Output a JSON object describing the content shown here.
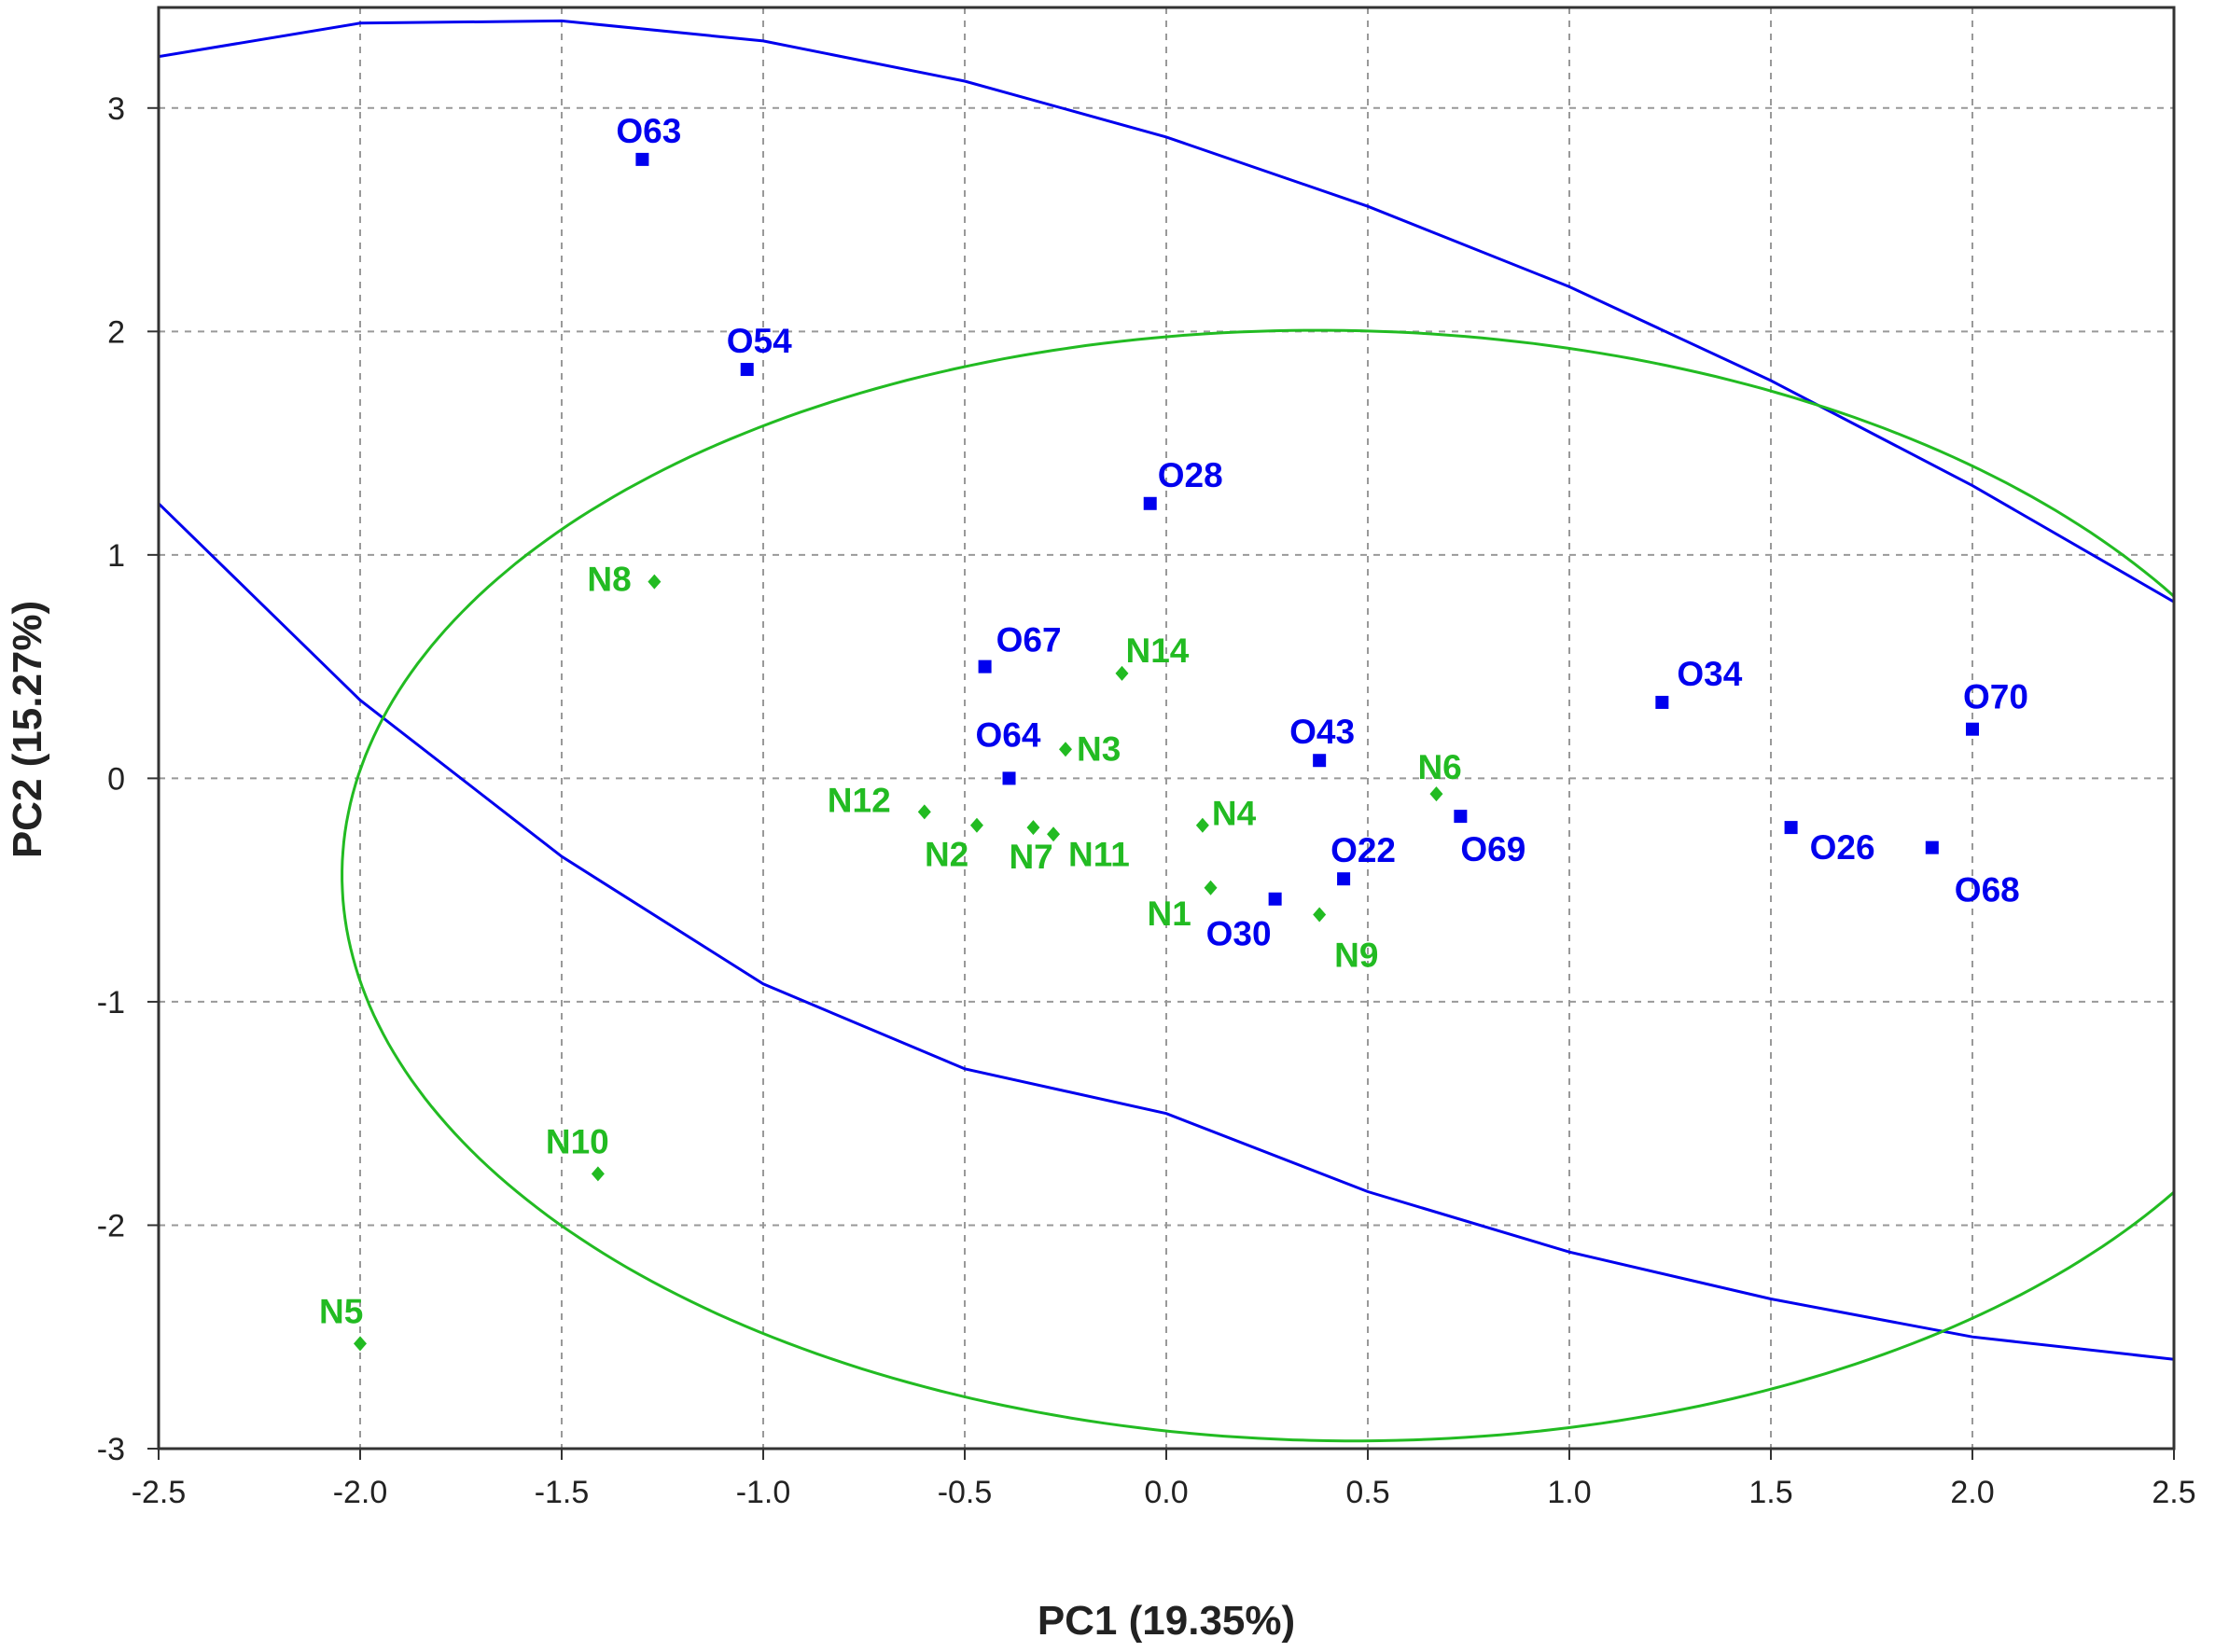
{
  "chart_data": {
    "type": "scatter",
    "title": "",
    "xlabel": "PC1 (19.35%)",
    "ylabel": "PC2 (15.27%)",
    "xlim": [
      -2.5,
      2.5
    ],
    "ylim": [
      -3,
      3.45
    ],
    "x_ticks": [
      -2.5,
      -2.0,
      -1.5,
      -1.0,
      -0.5,
      0.0,
      0.5,
      1.0,
      1.5,
      2.0,
      2.5
    ],
    "x_tick_labels": [
      "-2.5",
      "-2.0",
      "-1.5",
      "-1.0",
      "-0.5",
      "0.0",
      "0.5",
      "1.0",
      "1.5",
      "2.0",
      "2.5"
    ],
    "y_ticks": [
      3,
      2,
      1,
      0,
      -1,
      -2,
      -3
    ],
    "y_tick_labels": [
      "3",
      "2",
      "1",
      "0",
      "-1",
      "-2",
      "-3"
    ],
    "grid": true,
    "series": [
      {
        "color": "#0000ee",
        "marker": "square",
        "points": [
          {
            "label": "O63",
            "x": -1.3,
            "y": 2.77
          },
          {
            "label": "O54",
            "x": -1.04,
            "y": 1.83
          },
          {
            "label": "O28",
            "x": -0.04,
            "y": 1.23
          },
          {
            "label": "O67",
            "x": -0.45,
            "y": 0.5
          },
          {
            "label": "O64",
            "x": -0.39,
            "y": 0.0
          },
          {
            "label": "O43",
            "x": 0.38,
            "y": 0.08
          },
          {
            "label": "O22",
            "x": 0.44,
            "y": -0.45
          },
          {
            "label": "O30",
            "x": 0.27,
            "y": -0.54
          },
          {
            "label": "O69",
            "x": 0.73,
            "y": -0.17
          },
          {
            "label": "O34",
            "x": 1.23,
            "y": 0.34
          },
          {
            "label": "O26",
            "x": 1.55,
            "y": -0.22
          },
          {
            "label": "O68",
            "x": 1.9,
            "y": -0.31
          },
          {
            "label": "O70",
            "x": 2.0,
            "y": 0.22
          }
        ],
        "ellipse": [
          {
            "x": -2.5,
            "y": 3.23
          },
          {
            "x": -2.0,
            "y": 3.38
          },
          {
            "x": -1.5,
            "y": 3.39
          },
          {
            "x": -1.0,
            "y": 3.3
          },
          {
            "x": -0.5,
            "y": 3.12
          },
          {
            "x": 0.0,
            "y": 2.87
          },
          {
            "x": 0.5,
            "y": 2.56
          },
          {
            "x": 1.0,
            "y": 2.2
          },
          {
            "x": 1.5,
            "y": 1.78
          },
          {
            "x": 2.0,
            "y": 1.31
          },
          {
            "x": 2.5,
            "y": 0.79
          }
        ],
        "ellipse_lower": [
          {
            "x": -2.5,
            "y": 1.23
          },
          {
            "x": -2.0,
            "y": 0.35
          },
          {
            "x": -1.5,
            "y": -0.35
          },
          {
            "x": -1.0,
            "y": -0.92
          },
          {
            "x": -0.5,
            "y": -1.3
          },
          {
            "x": 0.0,
            "y": -1.5
          },
          {
            "x": 0.5,
            "y": -1.85
          },
          {
            "x": 1.0,
            "y": -2.12
          },
          {
            "x": 1.5,
            "y": -2.33
          },
          {
            "x": 2.0,
            "y": -2.5
          },
          {
            "x": 2.5,
            "y": -2.6
          }
        ]
      },
      {
        "color": "#22bb22",
        "marker": "diamond",
        "points": [
          {
            "label": "N8",
            "x": -1.27,
            "y": 0.88
          },
          {
            "label": "N14",
            "x": -0.11,
            "y": 0.47
          },
          {
            "label": "N3",
            "x": -0.25,
            "y": 0.13
          },
          {
            "label": "N12",
            "x": -0.6,
            "y": -0.15
          },
          {
            "label": "N2",
            "x": -0.47,
            "y": -0.21
          },
          {
            "label": "N7",
            "x": -0.33,
            "y": -0.22
          },
          {
            "label": "N11",
            "x": -0.28,
            "y": -0.25
          },
          {
            "label": "N4",
            "x": 0.09,
            "y": -0.21
          },
          {
            "label": "N1",
            "x": 0.11,
            "y": -0.49
          },
          {
            "label": "N9",
            "x": 0.38,
            "y": -0.61
          },
          {
            "label": "N6",
            "x": 0.67,
            "y": -0.07
          },
          {
            "label": "N10",
            "x": -1.41,
            "y": -1.77
          },
          {
            "label": "N5",
            "x": -2.0,
            "y": -2.53
          }
        ],
        "ellipse": {
          "cx": 0.42,
          "cy": -0.48,
          "rx": 2.45,
          "ry": 2.5,
          "rotation_deg": 33
        }
      }
    ]
  }
}
